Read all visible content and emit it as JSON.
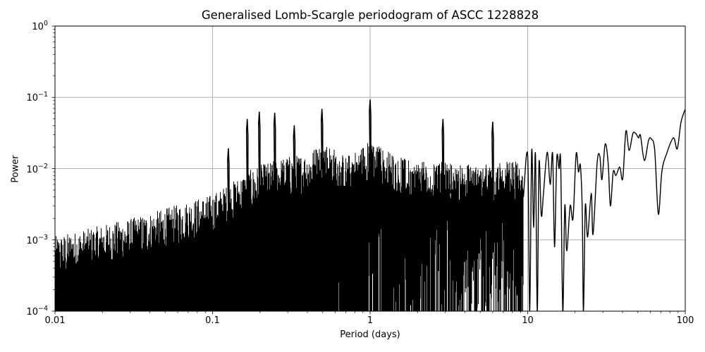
{
  "chart_data": {
    "type": "line",
    "title": "Generalised Lomb-Scargle periodogram of ASCC 1228828",
    "xlabel": "Period (days)",
    "ylabel": "Power",
    "xscale": "log",
    "yscale": "log",
    "xlim": [
      0.01,
      100
    ],
    "ylim": [
      0.0001,
      1
    ],
    "grid": true,
    "legend": null,
    "x_ticks": [
      {
        "value": 0.01,
        "label": "0.01"
      },
      {
        "value": 0.1,
        "label": "0.1"
      },
      {
        "value": 1,
        "label": "1"
      },
      {
        "value": 10,
        "label": "10"
      },
      {
        "value": 100,
        "label": "100"
      }
    ],
    "y_ticks": [
      {
        "value": 1,
        "base": "10",
        "exp": "0"
      },
      {
        "value": 0.1,
        "base": "10",
        "exp": "−1"
      },
      {
        "value": 0.01,
        "base": "10",
        "exp": "−2"
      },
      {
        "value": 0.001,
        "base": "10",
        "exp": "−3"
      },
      {
        "value": 0.0001,
        "base": "10",
        "exp": "−4"
      }
    ],
    "line_color": "#000000",
    "grid_color": "#b0b0b0",
    "noise_envelope": {
      "description": "Upper envelope of dense short-period forest (period, power)",
      "points": [
        [
          0.01,
          0.0009
        ],
        [
          0.015,
          0.0011
        ],
        [
          0.02,
          0.0013
        ],
        [
          0.03,
          0.0016
        ],
        [
          0.05,
          0.0022
        ],
        [
          0.07,
          0.0028
        ],
        [
          0.1,
          0.0035
        ],
        [
          0.13,
          0.005
        ],
        [
          0.16,
          0.007
        ],
        [
          0.2,
          0.009
        ],
        [
          0.3,
          0.012
        ],
        [
          0.4,
          0.013
        ],
        [
          0.5,
          0.02
        ],
        [
          0.7,
          0.012
        ],
        [
          1.0,
          0.02
        ],
        [
          1.5,
          0.012
        ],
        [
          2.0,
          0.01
        ],
        [
          3.0,
          0.01
        ],
        [
          5.0,
          0.009
        ],
        [
          7.0,
          0.01
        ],
        [
          10.0,
          0.01
        ]
      ]
    },
    "peaks": [
      {
        "period": 0.126,
        "power": 0.019
      },
      {
        "period": 0.166,
        "power": 0.049
      },
      {
        "period": 0.198,
        "power": 0.062
      },
      {
        "period": 0.248,
        "power": 0.06
      },
      {
        "period": 0.33,
        "power": 0.04
      },
      {
        "period": 0.495,
        "power": 0.068
      },
      {
        "period": 1.0,
        "power": 0.092
      },
      {
        "period": 2.9,
        "power": 0.049
      },
      {
        "period": 6.0,
        "power": 0.045
      }
    ],
    "smooth_curve": {
      "description": "Resolved long-period part of periodogram (period, power)",
      "points": [
        [
          9.4,
          0.004
        ],
        [
          10.0,
          0.015
        ],
        [
          10.3,
          0.0001
        ],
        [
          10.6,
          0.018
        ],
        [
          10.9,
          0.0015
        ],
        [
          11.2,
          0.016
        ],
        [
          11.5,
          0.0001
        ],
        [
          11.8,
          0.012
        ],
        [
          12.2,
          0.0022
        ],
        [
          12.6,
          0.0045
        ],
        [
          13.3,
          0.017
        ],
        [
          13.9,
          0.006
        ],
        [
          14.4,
          0.016
        ],
        [
          14.8,
          0.0008
        ],
        [
          15.3,
          0.014
        ],
        [
          15.8,
          0.01
        ],
        [
          16.2,
          0.012
        ],
        [
          16.7,
          0.0001
        ],
        [
          17.2,
          0.003
        ],
        [
          17.7,
          0.0007
        ],
        [
          18.6,
          0.003
        ],
        [
          19.4,
          0.002
        ],
        [
          20.3,
          0.016
        ],
        [
          21.0,
          0.009
        ],
        [
          21.6,
          0.011
        ],
        [
          22.2,
          0.0025
        ],
        [
          22.6,
          0.0001
        ],
        [
          23.2,
          0.003
        ],
        [
          24.0,
          0.0011
        ],
        [
          25.3,
          0.0045
        ],
        [
          26.0,
          0.0012
        ],
        [
          27.6,
          0.012
        ],
        [
          28.7,
          0.015
        ],
        [
          29.6,
          0.007
        ],
        [
          31.0,
          0.022
        ],
        [
          32.4,
          0.012
        ],
        [
          33.5,
          0.003
        ],
        [
          34.9,
          0.009
        ],
        [
          36.3,
          0.008
        ],
        [
          38.4,
          0.0105
        ],
        [
          40.1,
          0.0072
        ],
        [
          42.0,
          0.0335
        ],
        [
          44.0,
          0.018
        ],
        [
          46.5,
          0.031
        ],
        [
          48.5,
          0.031
        ],
        [
          50.5,
          0.027
        ],
        [
          52.0,
          0.029
        ],
        [
          55.0,
          0.013
        ],
        [
          58.5,
          0.025
        ],
        [
          61.0,
          0.026
        ],
        [
          64.0,
          0.018
        ],
        [
          67.5,
          0.0023
        ],
        [
          71.0,
          0.009
        ],
        [
          76.0,
          0.016
        ],
        [
          84.0,
          0.027
        ],
        [
          89.0,
          0.019
        ],
        [
          94.0,
          0.045
        ],
        [
          100.0,
          0.068
        ]
      ]
    }
  },
  "figure": {
    "title": "Generalised Lomb-Scargle periodogram of ASCC 1228828",
    "xlabel": "Period (days)",
    "ylabel": "Power"
  }
}
